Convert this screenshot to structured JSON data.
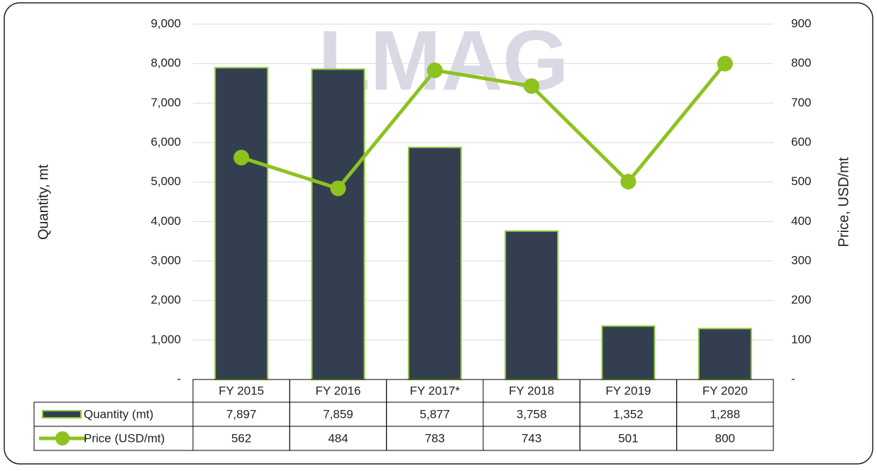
{
  "chart_data": {
    "type": "bar-line-table",
    "watermark": "LMAG",
    "categories": [
      "FY 2015",
      "FY 2016",
      "FY 2017*",
      "FY 2018",
      "FY 2019",
      "FY 2020"
    ],
    "y_label": "Quantity, mt",
    "y2_label": "Price, USD/mt",
    "ylim": [
      0,
      9000
    ],
    "yticks": [
      {
        "value": 0,
        "label": "-"
      },
      {
        "value": 1000,
        "label": "1,000"
      },
      {
        "value": 2000,
        "label": "2,000"
      },
      {
        "value": 3000,
        "label": "3,000"
      },
      {
        "value": 4000,
        "label": "4,000"
      },
      {
        "value": 5000,
        "label": "5,000"
      },
      {
        "value": 6000,
        "label": "6,000"
      },
      {
        "value": 7000,
        "label": "7,000"
      },
      {
        "value": 8000,
        "label": "8,000"
      },
      {
        "value": 9000,
        "label": "9,000"
      }
    ],
    "y2lim": [
      0,
      900
    ],
    "y2ticks": [
      {
        "value": 0,
        "label": "-"
      },
      100,
      200,
      300,
      400,
      500,
      600,
      700,
      800,
      900
    ],
    "grid": true,
    "series": [
      {
        "name": "Quantity (mt)",
        "type": "bar",
        "color": "#333f50",
        "edge_color": "#92c83e",
        "values": [
          7897,
          7859,
          5877,
          3758,
          1352,
          1288
        ],
        "value_labels": [
          "7,897",
          "7,859",
          "5,877",
          "3,758",
          "1,352",
          "1,288"
        ]
      },
      {
        "name": "Price (USD/mt)",
        "type": "line",
        "color": "#8dc21f",
        "axis": "y2",
        "values": [
          562,
          484,
          783,
          743,
          501,
          800
        ]
      }
    ]
  }
}
